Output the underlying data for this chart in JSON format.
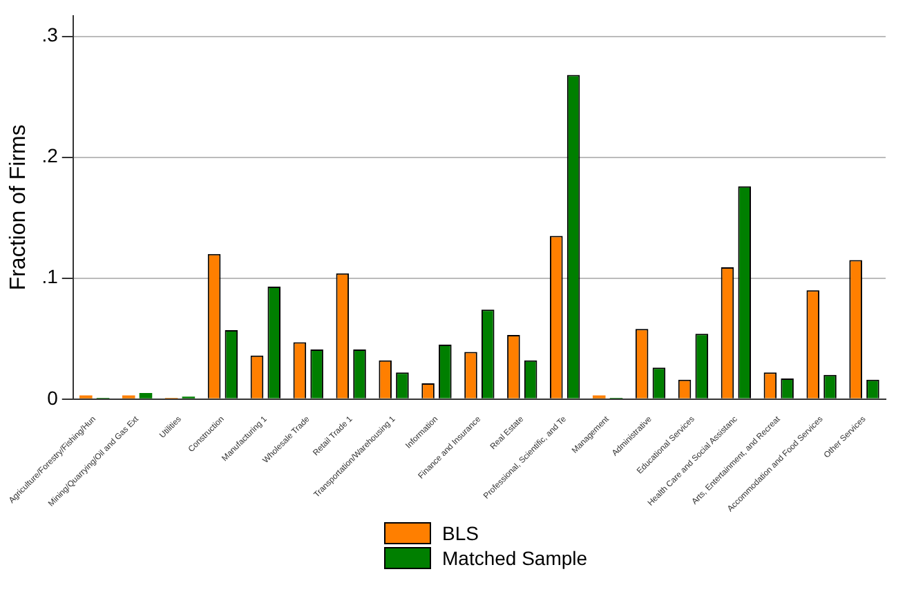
{
  "chart_data": {
    "type": "bar",
    "ylabel": "Fraction of Firms",
    "categories": [
      "Agriculture/Forestry/Fishing/Hun",
      "Mining/Quarrying/Oil and Gas Ext",
      "Utilities",
      "Construction",
      "Manufacturing 1",
      "Wholesale Trade",
      "Retail Trade 1",
      "Transportation/Warehousing 1",
      "Information",
      "Finance and Insurance",
      "Real Estate",
      "Professional, Scientific, and Te",
      "Management",
      "Administrative",
      "Educational Services",
      "Health Care and Social Assistanc",
      "Arts, Entertainment, and Recreat",
      "Accommodation and Food Services",
      "Other Services"
    ],
    "series": [
      {
        "name": "BLS",
        "color": "#ff7f00",
        "values": [
          0.003,
          0.003,
          0.001,
          0.12,
          0.036,
          0.047,
          0.104,
          0.032,
          0.013,
          0.039,
          0.053,
          0.135,
          0.003,
          0.058,
          0.016,
          0.109,
          0.022,
          0.09,
          0.115
        ]
      },
      {
        "name": "Matched Sample",
        "color": "#007f00",
        "values": [
          0.001,
          0.005,
          0.002,
          0.057,
          0.093,
          0.041,
          0.041,
          0.022,
          0.045,
          0.074,
          0.032,
          0.268,
          0.001,
          0.026,
          0.054,
          0.176,
          0.017,
          0.02,
          0.016
        ]
      }
    ],
    "ylim": [
      0,
      0.317
    ],
    "yticks": [
      {
        "value": 0,
        "label": "0"
      },
      {
        "value": 0.1,
        "label": ".1"
      },
      {
        "value": 0.2,
        "label": ".2"
      },
      {
        "value": 0.3,
        "label": ".3"
      }
    ],
    "grid": "y",
    "legend": "bottom"
  }
}
